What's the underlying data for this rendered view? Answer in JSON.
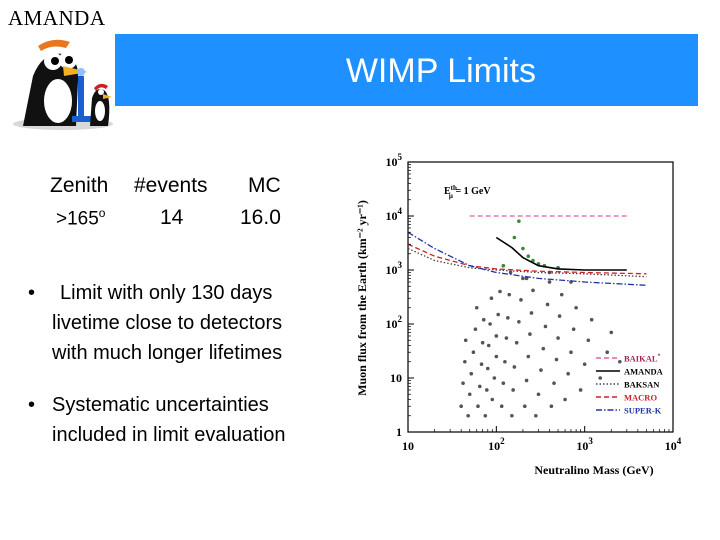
{
  "header": {
    "brand": "AMANDA",
    "title": "WIMP Limits",
    "logo_icon": "penguin-mascot-icon",
    "title_bar_color": "#1e90ff"
  },
  "stats": {
    "col1_header": "Zenith",
    "col2_header": "#events",
    "col3_header": "MC",
    "zenith_value": ">165",
    "zenith_unit": "o",
    "events_value": "14",
    "mc_value": "16.0"
  },
  "bullets": [
    {
      "marker": "•",
      "line1": "Limit with only 130 days",
      "line2": "livetime close to detectors",
      "line3": "with much longer lifetimes"
    },
    {
      "marker": "•",
      "line1": "Systematic uncertainties",
      "line2": "included in limit evaluation"
    }
  ],
  "chart_data": {
    "type": "scatter",
    "title": "",
    "annotation": "E_µ^th = 1 GeV",
    "annotation_main": "E",
    "annotation_sup": "th",
    "annotation_sub": "µ",
    "annotation_rest": " = 1 GeV",
    "xlabel": "Neutralino Mass (GeV)",
    "ylabel": "Muon flux from the Earth (km⁻² yr⁻¹)",
    "x_scale": "log",
    "y_scale": "log",
    "xlim": [
      10,
      10000
    ],
    "ylim": [
      1,
      100000
    ],
    "x_ticks": [
      {
        "base": "10",
        "exp": ""
      },
      {
        "base": "10",
        "exp": "2"
      },
      {
        "base": "10",
        "exp": "3"
      },
      {
        "base": "10",
        "exp": "4"
      }
    ],
    "y_ticks": [
      {
        "base": "1",
        "exp": ""
      },
      {
        "base": "10",
        "exp": ""
      },
      {
        "base": "10",
        "exp": "2"
      },
      {
        "base": "10",
        "exp": "3"
      },
      {
        "base": "10",
        "exp": "4"
      },
      {
        "base": "10",
        "exp": "5"
      }
    ],
    "legend_position": "bottom-right",
    "series": [
      {
        "name": "BAIKAL",
        "superscript": "*",
        "color": "#e060a0",
        "style": "dashed",
        "points": [
          [
            50,
            10000
          ],
          [
            3000,
            10000
          ]
        ]
      },
      {
        "name": "AMANDA",
        "color": "#000000",
        "style": "solid",
        "points": [
          [
            100,
            4000
          ],
          [
            150,
            2600
          ],
          [
            200,
            1700
          ],
          [
            300,
            1200
          ],
          [
            500,
            1050
          ],
          [
            1000,
            1000
          ],
          [
            3000,
            1000
          ]
        ]
      },
      {
        "name": "BAKSAN",
        "color": "#444444",
        "style": "dotted",
        "points": [
          [
            10,
            2500
          ],
          [
            20,
            1500
          ],
          [
            50,
            1100
          ],
          [
            100,
            1000
          ],
          [
            300,
            900
          ],
          [
            1000,
            850
          ],
          [
            5000,
            750
          ]
        ]
      },
      {
        "name": "MACRO",
        "color": "#cc2222",
        "style": "dashed",
        "points": [
          [
            10,
            3000
          ],
          [
            20,
            1800
          ],
          [
            50,
            1200
          ],
          [
            100,
            1050
          ],
          [
            300,
            950
          ],
          [
            1000,
            900
          ],
          [
            5000,
            850
          ]
        ]
      },
      {
        "name": "SUPER-K",
        "color": "#2233aa",
        "style": "dashdot",
        "points": [
          [
            10,
            5000
          ],
          [
            20,
            2500
          ],
          [
            50,
            1200
          ],
          [
            100,
            900
          ],
          [
            300,
            700
          ],
          [
            1000,
            600
          ],
          [
            5000,
            520
          ]
        ]
      }
    ],
    "models": [
      {
        "x": 40,
        "y": 3
      },
      {
        "x": 42,
        "y": 8
      },
      {
        "x": 44,
        "y": 20
      },
      {
        "x": 45,
        "y": 50
      },
      {
        "x": 48,
        "y": 2
      },
      {
        "x": 50,
        "y": 5
      },
      {
        "x": 52,
        "y": 12
      },
      {
        "x": 55,
        "y": 30
      },
      {
        "x": 58,
        "y": 80
      },
      {
        "x": 60,
        "y": 200
      },
      {
        "x": 62,
        "y": 3
      },
      {
        "x": 65,
        "y": 7
      },
      {
        "x": 68,
        "y": 18
      },
      {
        "x": 70,
        "y": 45
      },
      {
        "x": 72,
        "y": 120
      },
      {
        "x": 75,
        "y": 2
      },
      {
        "x": 78,
        "y": 6
      },
      {
        "x": 80,
        "y": 15
      },
      {
        "x": 82,
        "y": 40
      },
      {
        "x": 85,
        "y": 100
      },
      {
        "x": 88,
        "y": 300
      },
      {
        "x": 90,
        "y": 4
      },
      {
        "x": 95,
        "y": 10
      },
      {
        "x": 100,
        "y": 25
      },
      {
        "x": 100,
        "y": 60
      },
      {
        "x": 105,
        "y": 150
      },
      {
        "x": 110,
        "y": 400
      },
      {
        "x": 115,
        "y": 3
      },
      {
        "x": 120,
        "y": 8
      },
      {
        "x": 125,
        "y": 20
      },
      {
        "x": 130,
        "y": 55
      },
      {
        "x": 135,
        "y": 130
      },
      {
        "x": 140,
        "y": 350
      },
      {
        "x": 145,
        "y": 900
      },
      {
        "x": 150,
        "y": 2
      },
      {
        "x": 155,
        "y": 6
      },
      {
        "x": 160,
        "y": 16
      },
      {
        "x": 170,
        "y": 45
      },
      {
        "x": 180,
        "y": 110
      },
      {
        "x": 190,
        "y": 280
      },
      {
        "x": 200,
        "y": 700
      },
      {
        "x": 210,
        "y": 3
      },
      {
        "x": 220,
        "y": 9
      },
      {
        "x": 230,
        "y": 25
      },
      {
        "x": 240,
        "y": 65
      },
      {
        "x": 250,
        "y": 160
      },
      {
        "x": 260,
        "y": 420
      },
      {
        "x": 280,
        "y": 2
      },
      {
        "x": 300,
        "y": 5
      },
      {
        "x": 320,
        "y": 14
      },
      {
        "x": 340,
        "y": 35
      },
      {
        "x": 360,
        "y": 90
      },
      {
        "x": 380,
        "y": 230
      },
      {
        "x": 400,
        "y": 600
      },
      {
        "x": 420,
        "y": 3
      },
      {
        "x": 450,
        "y": 8
      },
      {
        "x": 480,
        "y": 22
      },
      {
        "x": 500,
        "y": 55
      },
      {
        "x": 520,
        "y": 140
      },
      {
        "x": 550,
        "y": 350
      },
      {
        "x": 600,
        "y": 4
      },
      {
        "x": 650,
        "y": 12
      },
      {
        "x": 700,
        "y": 30
      },
      {
        "x": 750,
        "y": 80
      },
      {
        "x": 800,
        "y": 200
      },
      {
        "x": 900,
        "y": 6
      },
      {
        "x": 1000,
        "y": 18
      },
      {
        "x": 1100,
        "y": 50
      },
      {
        "x": 1200,
        "y": 120
      },
      {
        "x": 1500,
        "y": 10
      },
      {
        "x": 1800,
        "y": 30
      },
      {
        "x": 2000,
        "y": 70
      },
      {
        "x": 2500,
        "y": 20
      },
      {
        "x": 160,
        "y": 4000
      },
      {
        "x": 200,
        "y": 2500
      },
      {
        "x": 230,
        "y": 1800
      },
      {
        "x": 260,
        "y": 1500
      },
      {
        "x": 300,
        "y": 1300
      },
      {
        "x": 350,
        "y": 1200
      },
      {
        "x": 180,
        "y": 8000
      },
      {
        "x": 120,
        "y": 1200
      },
      {
        "x": 220,
        "y": 700
      },
      {
        "x": 400,
        "y": 900
      },
      {
        "x": 500,
        "y": 1100
      },
      {
        "x": 700,
        "y": 600
      }
    ]
  }
}
